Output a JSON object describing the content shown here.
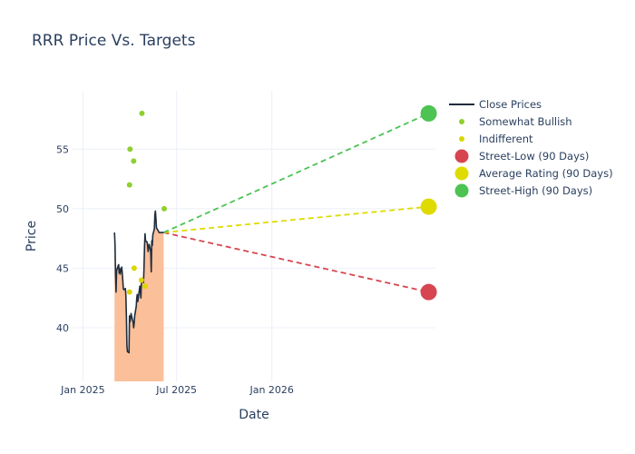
{
  "chart_data": {
    "type": "line",
    "title": "RRR Price Vs. Targets",
    "xlabel": "Date",
    "ylabel": "Price",
    "xlim": [
      "2024-12-12",
      "2026-11-13"
    ],
    "ylim": [
      35.5,
      59.9
    ],
    "x_ticks": [
      {
        "date": "2025-01-01",
        "label": "Jan 2025"
      },
      {
        "date": "2025-07-01",
        "label": "Jul 2025"
      },
      {
        "date": "2026-01-01",
        "label": "Jan 2026"
      }
    ],
    "y_ticks": [
      40,
      45,
      50,
      55
    ],
    "grid": true,
    "legend_position": "top-right",
    "close_prices": {
      "name": "Close Prices",
      "color": "#1f2d3d",
      "fill_color": "#fbbf99",
      "x": [
        "2025-03-03",
        "2025-03-04",
        "2025-03-05",
        "2025-03-06",
        "2025-03-07",
        "2025-03-10",
        "2025-03-11",
        "2025-03-12",
        "2025-03-13",
        "2025-03-14",
        "2025-03-17",
        "2025-03-18",
        "2025-03-19",
        "2025-03-20",
        "2025-03-21",
        "2025-03-24",
        "2025-03-25",
        "2025-03-26",
        "2025-03-27",
        "2025-03-28",
        "2025-03-31",
        "2025-04-01",
        "2025-04-02",
        "2025-04-03",
        "2025-04-04",
        "2025-04-07",
        "2025-04-08",
        "2025-04-09",
        "2025-04-10",
        "2025-04-11",
        "2025-04-14",
        "2025-04-15",
        "2025-04-16",
        "2025-04-17",
        "2025-04-21",
        "2025-04-22",
        "2025-04-23",
        "2025-04-24",
        "2025-04-25",
        "2025-04-28",
        "2025-04-29",
        "2025-04-30",
        "2025-05-01",
        "2025-05-02",
        "2025-05-05",
        "2025-05-06",
        "2025-05-07",
        "2025-05-08",
        "2025-05-09",
        "2025-05-12",
        "2025-05-13",
        "2025-05-14",
        "2025-05-15",
        "2025-05-16",
        "2025-05-19",
        "2025-05-20",
        "2025-05-21",
        "2025-05-22",
        "2025-05-23",
        "2025-05-27",
        "2025-05-28",
        "2025-05-29",
        "2025-05-30",
        "2025-06-02",
        "2025-06-03",
        "2025-06-04",
        "2025-06-05",
        "2025-06-06"
      ],
      "y": [
        48.0,
        47.0,
        44.5,
        43.0,
        44.8,
        45.2,
        45.3,
        44.6,
        45.0,
        44.5,
        45.1,
        44.6,
        44.0,
        43.3,
        43.2,
        43.3,
        42.7,
        41.0,
        38.5,
        38.0,
        37.9,
        41.0,
        40.5,
        40.8,
        41.2,
        40.6,
        40.5,
        40.0,
        40.4,
        41.0,
        41.8,
        42.5,
        42.8,
        42.2,
        43.5,
        43.0,
        42.5,
        43.9,
        44.0,
        43.8,
        45.0,
        46.8,
        47.9,
        47.3,
        47.2,
        46.9,
        46.4,
        46.8,
        47.0,
        46.4,
        44.7,
        47.3,
        46.9,
        47.8,
        48.3,
        49.5,
        49.8,
        49.2,
        48.4,
        48.1,
        48.0,
        48.0,
        48.0,
        48.0,
        48.0,
        48.0,
        48.0,
        48.0
      ]
    },
    "analyst_ratings": [
      {
        "name": "Somewhat Bullish",
        "color": "#8fcf2f",
        "points": [
          {
            "x": "2025-04-01",
            "y": 52
          },
          {
            "x": "2025-04-02",
            "y": 55
          },
          {
            "x": "2025-04-09",
            "y": 54
          },
          {
            "x": "2025-04-25",
            "y": 58
          },
          {
            "x": "2025-06-07",
            "y": 50
          }
        ]
      },
      {
        "name": "Indifferent",
        "color": "#d9d600",
        "points": [
          {
            "x": "2025-04-01",
            "y": 43
          },
          {
            "x": "2025-04-10",
            "y": 45
          },
          {
            "x": "2025-04-24",
            "y": 44
          },
          {
            "x": "2025-05-01",
            "y": 43.5
          }
        ]
      }
    ],
    "targets": {
      "start": {
        "x": "2025-06-06",
        "y": 48.0
      },
      "end_x": "2026-10-31",
      "series": [
        {
          "name": "Street-Low (90 Days)",
          "color": "#d64550",
          "value": 43
        },
        {
          "name": "Average Rating (90 Days)",
          "color": "#dfdb00",
          "value": 50.17
        },
        {
          "name": "Street-High (90 Days)",
          "color": "#4cc352",
          "value": 58
        }
      ]
    }
  }
}
